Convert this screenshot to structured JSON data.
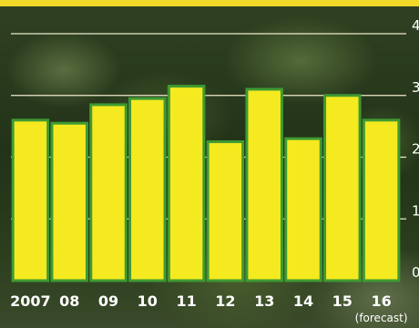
{
  "colors": {
    "bar_fill": "#f5ea1f",
    "bar_stroke": "#3f9a32",
    "top_band": "#f2d829",
    "gridline": "#efe9c9",
    "text": "#ffffff"
  },
  "chart_data": {
    "type": "bar",
    "title": "",
    "xlabel": "",
    "ylabel": "",
    "ylim": [
      0,
      4
    ],
    "yticks": [
      "0",
      "1",
      "2",
      "3",
      "4"
    ],
    "categories": [
      "2007",
      "08",
      "09",
      "10",
      "11",
      "12",
      "13",
      "14",
      "15",
      "16"
    ],
    "category_note": {
      "category": "16",
      "text": "(forecast)"
    },
    "values": [
      2.6,
      2.55,
      2.85,
      2.95,
      3.15,
      2.25,
      3.1,
      2.3,
      3.0,
      2.6
    ],
    "grid": true
  }
}
